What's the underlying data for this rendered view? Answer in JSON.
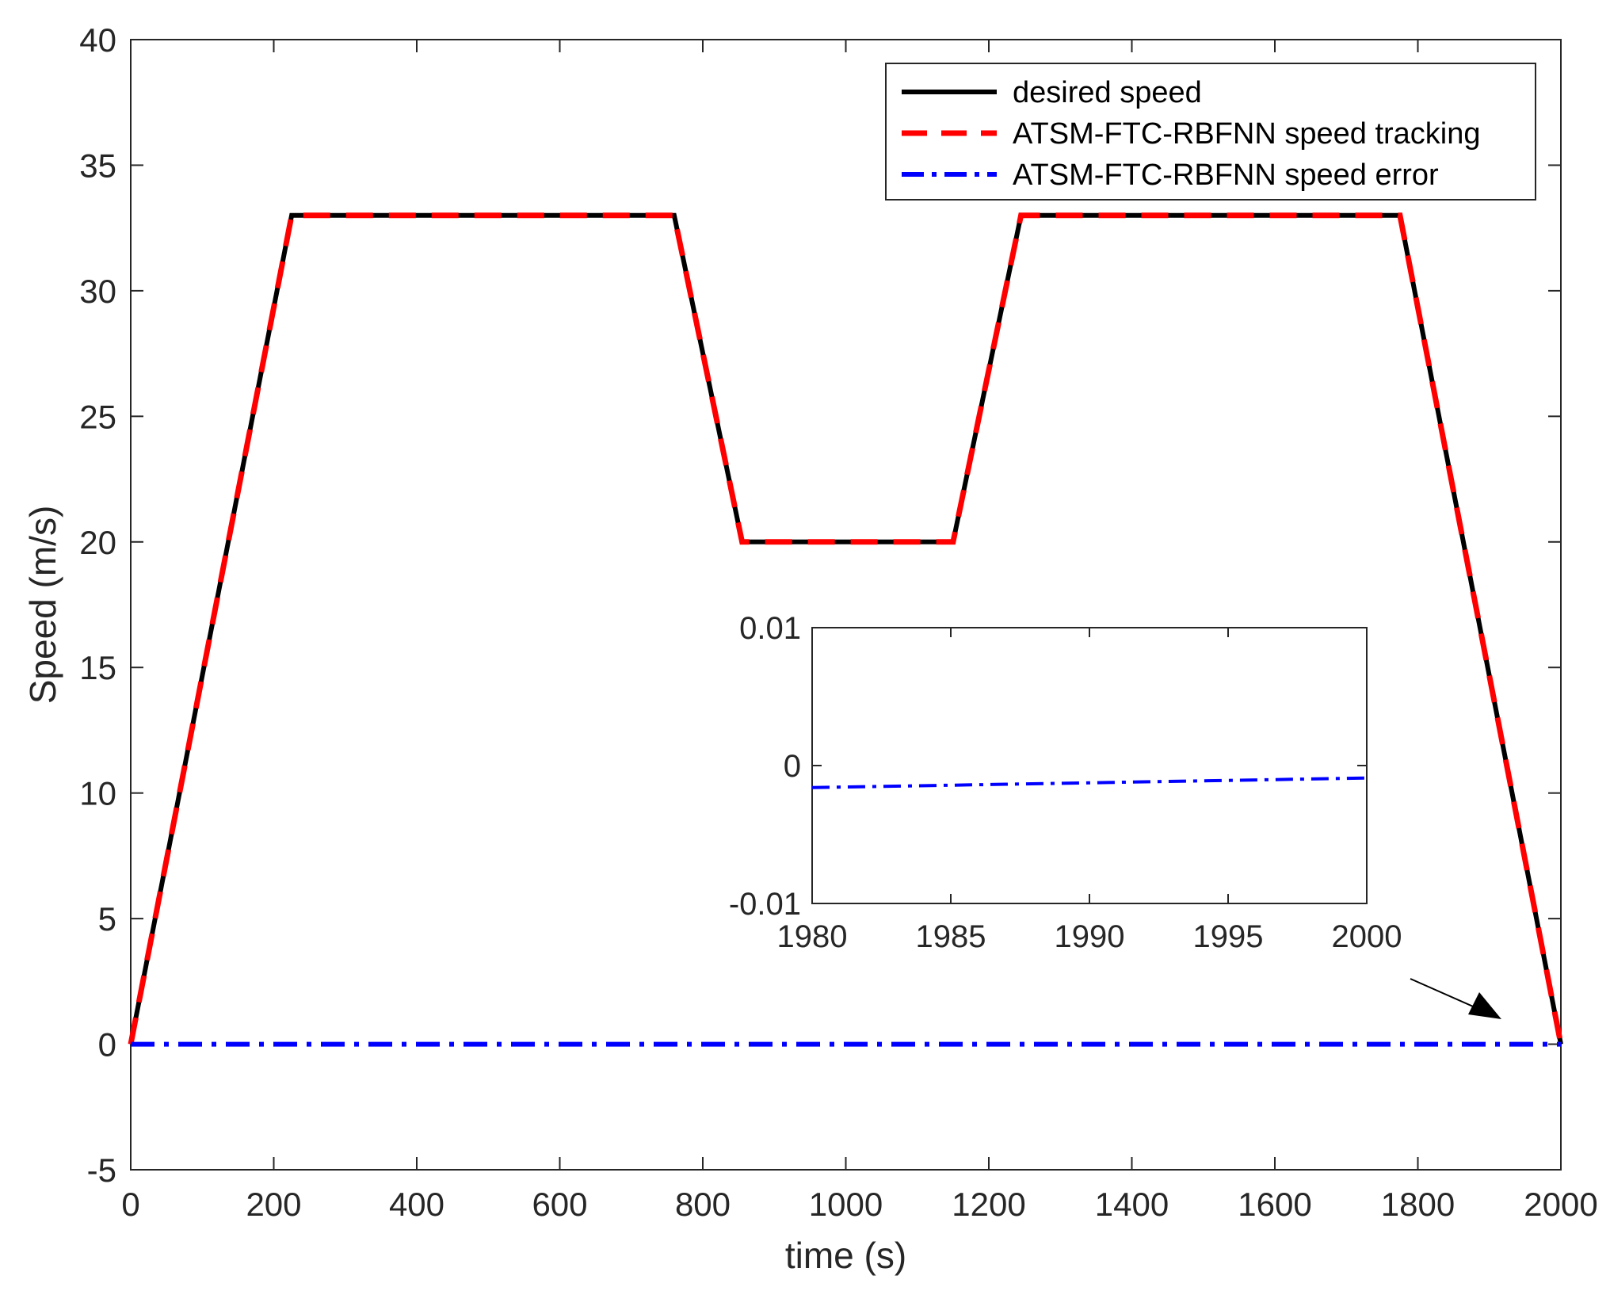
{
  "chart_data": [
    {
      "type": "line",
      "title": "",
      "xlabel": "time (s)",
      "ylabel": "Speed (m/s)",
      "xlim": [
        0,
        2000
      ],
      "ylim": [
        -5,
        40
      ],
      "xticks": [
        0,
        200,
        400,
        600,
        800,
        1000,
        1200,
        1400,
        1600,
        1800,
        2000
      ],
      "yticks": [
        -5,
        0,
        5,
        10,
        15,
        20,
        25,
        30,
        35,
        40
      ],
      "grid": false,
      "legend_position": "top-right",
      "series": [
        {
          "name": "desired speed",
          "color": "#000000",
          "style": "solid",
          "x": [
            0,
            225,
            760,
            855,
            1150,
            1245,
            1775,
            2000
          ],
          "y": [
            0,
            33,
            33,
            20,
            20,
            33,
            33,
            0
          ]
        },
        {
          "name": "ATSM-FTC-RBFNN speed tracking",
          "color": "#ff0000",
          "style": "dashed",
          "x": [
            0,
            225,
            760,
            855,
            1150,
            1245,
            1775,
            2000
          ],
          "y": [
            0,
            33,
            33,
            20,
            20,
            33,
            33,
            0
          ]
        },
        {
          "name": "ATSM-FTC-RBFNN speed error",
          "color": "#0000ff",
          "style": "dash-dot",
          "x": [
            0,
            500,
            1000,
            1500,
            2000
          ],
          "y": [
            0,
            0,
            0,
            0,
            0
          ]
        }
      ]
    },
    {
      "type": "line",
      "title": "",
      "xlabel": "",
      "ylabel": "",
      "xlim": [
        1980,
        2000
      ],
      "ylim": [
        -0.01,
        0.01
      ],
      "xticks": [
        1980,
        1985,
        1990,
        1995,
        2000
      ],
      "yticks": [
        -0.01,
        0,
        0.01
      ],
      "ytick_labels": [
        "-0.01",
        "0",
        "0.01"
      ],
      "grid": false,
      "series": [
        {
          "name": "ATSM-FTC-RBFNN speed error",
          "color": "#0000ff",
          "style": "dash-dot",
          "x": [
            1980,
            2000
          ],
          "y": [
            -0.0016,
            -0.0009
          ]
        }
      ]
    }
  ]
}
